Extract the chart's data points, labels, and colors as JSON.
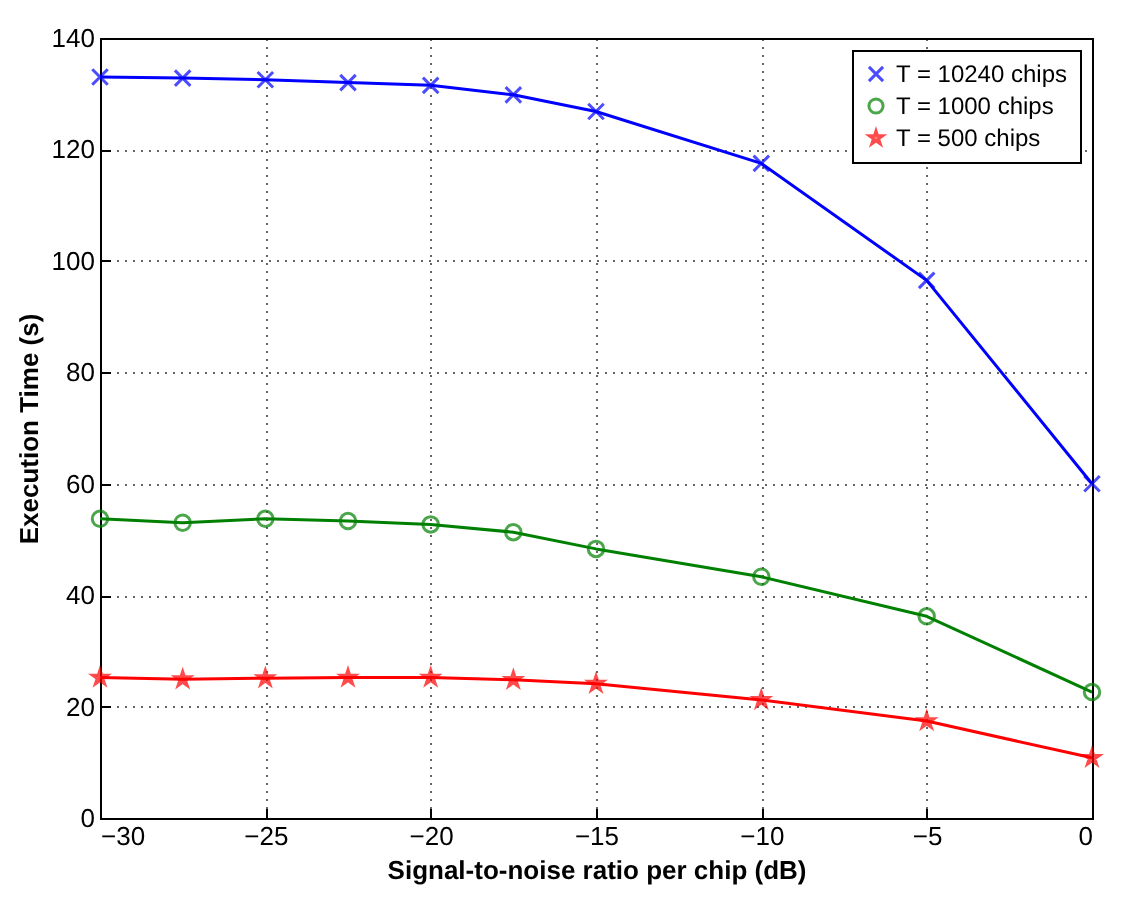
{
  "chart_data": {
    "type": "line",
    "xlabel": "Signal-to-noise ratio per chip (dB)",
    "ylabel": "Execution Time (s)",
    "x": [
      -30,
      -27.5,
      -25,
      -22.5,
      -20,
      -17.5,
      -15,
      -10,
      -5,
      0
    ],
    "series": [
      {
        "name": "T = 10240 chips",
        "color": "#0000ff",
        "marker": "cross",
        "values": [
          133,
          132.8,
          132.5,
          132,
          131.5,
          129.8,
          126.8,
          117.5,
          96.5,
          60
        ]
      },
      {
        "name": "T = 1000 chips",
        "color": "#008000",
        "marker": "circle",
        "values": [
          53.7,
          53,
          53.7,
          53.3,
          52.7,
          51.3,
          48.3,
          43.3,
          36.2,
          22.6
        ]
      },
      {
        "name": "T = 500 chips",
        "color": "#ff0000",
        "marker": "star",
        "values": [
          25.2,
          24.9,
          25.1,
          25.2,
          25.2,
          24.8,
          24.1,
          21.2,
          17.4,
          10.8
        ]
      }
    ],
    "xlim": [
      -30,
      0
    ],
    "xticks": [
      -30,
      -25,
      -20,
      -15,
      -10,
      -5,
      0
    ],
    "ylim": [
      0,
      140
    ],
    "yticks": [
      0,
      20,
      40,
      60,
      80,
      100,
      120,
      140
    ],
    "grid": true,
    "legend": "top right",
    "line_style": "solid"
  }
}
